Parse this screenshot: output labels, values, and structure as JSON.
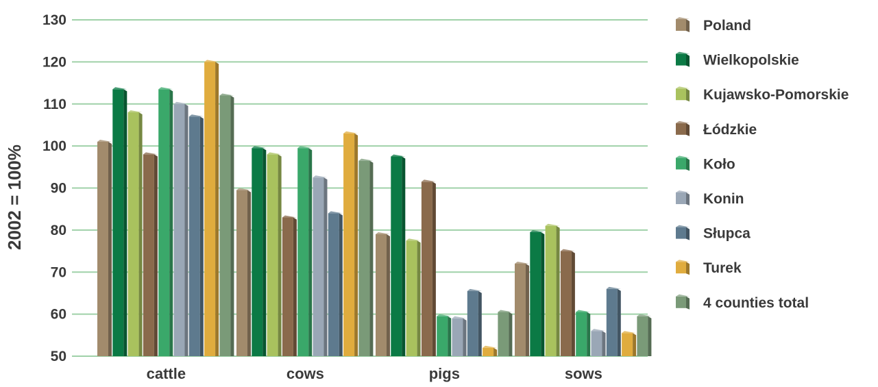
{
  "chart_data": {
    "type": "bar",
    "ylabel": "2002 = 100%",
    "ylim": [
      50,
      130
    ],
    "yticks": [
      50,
      60,
      70,
      80,
      90,
      100,
      110,
      120,
      130
    ],
    "grid": true,
    "legend_position": "right",
    "categories": [
      "cattle",
      "cows",
      "pigs",
      "sows"
    ],
    "series": [
      {
        "name": "Poland",
        "color": "#a28b6c",
        "values": [
          101,
          89.5,
          79,
          72
        ]
      },
      {
        "name": "Wielkopolskie",
        "color": "#0b7a45",
        "values": [
          113.5,
          99.5,
          97.5,
          79.5
        ]
      },
      {
        "name": "Kujawsko-Pomorskie",
        "color": "#a9c25e",
        "values": [
          108,
          98,
          77.5,
          81
        ]
      },
      {
        "name": "Łódzkie",
        "color": "#8a6a4c",
        "values": [
          98,
          83,
          91.5,
          75
        ]
      },
      {
        "name": "Koło",
        "color": "#3aa86a",
        "values": [
          113.5,
          99.5,
          59.5,
          60.5
        ]
      },
      {
        "name": "Konin",
        "color": "#9aa7b6",
        "values": [
          110,
          92.5,
          59,
          56
        ]
      },
      {
        "name": "Słupca",
        "color": "#5e7a8e",
        "values": [
          107,
          84,
          65.5,
          66
        ]
      },
      {
        "name": "Turek",
        "color": "#e0ac3e",
        "values": [
          120,
          103,
          52,
          55.5
        ]
      },
      {
        "name": "4 counties total",
        "color": "#7a9a78",
        "values": [
          112,
          96.5,
          60.5,
          59.5
        ]
      }
    ]
  }
}
